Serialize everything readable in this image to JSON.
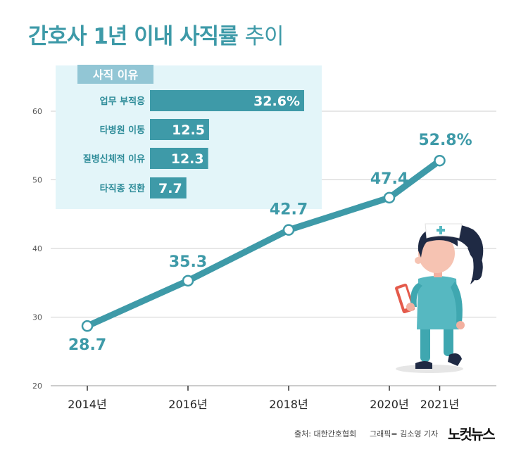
{
  "title": {
    "main": "간호사 1년 이내 사직률",
    "suffix": "추이"
  },
  "chart_data": {
    "type": "line",
    "title": "간호사 1년 이내 사직률 추이",
    "x": [
      "2014년",
      "2016년",
      "2018년",
      "2020년",
      "2021년"
    ],
    "x_values": [
      2014,
      2016,
      2018,
      2020,
      2021
    ],
    "y": [
      28.7,
      35.3,
      42.7,
      47.4,
      52.8
    ],
    "point_labels": [
      "28.7",
      "35.3",
      "42.7",
      "47.4",
      "52.8%"
    ],
    "y_ticks": [
      "20",
      "30",
      "40",
      "50",
      "60"
    ],
    "ylim": [
      20,
      65
    ],
    "xlabel": "",
    "ylabel": "",
    "grid": true,
    "line_color": "#3e9aa8"
  },
  "reasons": {
    "header": "사직 이유",
    "type": "bar",
    "items": [
      {
        "label": "업무 부적응",
        "value": 32.6,
        "display": "32.6%"
      },
      {
        "label": "타병원 이동",
        "value": 12.5,
        "display": "12.5"
      },
      {
        "label": "질병신체적 이유",
        "value": 12.3,
        "display": "12.3"
      },
      {
        "label": "타직종 전환",
        "value": 7.7,
        "display": "7.7"
      }
    ],
    "max": 32.6
  },
  "footer": {
    "source": "출처: 대한간호협회",
    "graphic": "그래픽= 김소영 기자",
    "brand": "노컷뉴스"
  },
  "colors": {
    "accent": "#3e9aa8",
    "panel": "#e3f5f9",
    "grid": "#cfcfcf"
  }
}
